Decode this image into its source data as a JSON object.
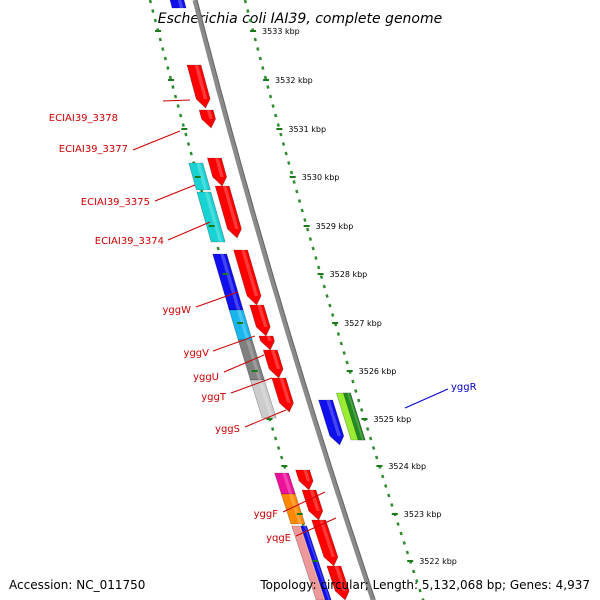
{
  "title": "Escherichia coli IAI39, complete genome",
  "footer": {
    "accession": "Accession: NC_011750",
    "stats": "Topology: circular; Length: 5,132,068 bp; Genes: 4,937"
  },
  "colors": {
    "backbone": "#8a8a8a",
    "ruler_dots": "#2e8b2e",
    "red": "#ff0000",
    "cyan": "#17d3d3",
    "blue": "#1010ee",
    "sky": "#19b5ee",
    "gray": "#808080",
    "lightgray": "#cccccc",
    "lime": "#99ee33",
    "green": "#228b22",
    "magenta": "#ee1199",
    "orange": "#ff8800",
    "pink": "#ee9999",
    "label_red": "#cc0000",
    "label_blue": "#0000cc"
  },
  "ticks": [
    "3533 kbp",
    "3532 kbp",
    "3531 kbp",
    "3530 kbp",
    "3529 kbp",
    "3528 kbp",
    "3527 kbp",
    "3526 kbp",
    "3525 kbp",
    "3524 kbp",
    "3523 kbp",
    "3522 kbp"
  ],
  "genes": [
    {
      "label": "ECIAI39_3378",
      "color": "label_red"
    },
    {
      "label": "ECIAI39_3377",
      "color": "label_red"
    },
    {
      "label": "ECIAI39_3375",
      "color": "label_red"
    },
    {
      "label": "ECIAI39_3374",
      "color": "label_red"
    },
    {
      "label": "yggW",
      "color": "label_red"
    },
    {
      "label": "yggV",
      "color": "label_red"
    },
    {
      "label": "yggU",
      "color": "label_red"
    },
    {
      "label": "yggT",
      "color": "label_red"
    },
    {
      "label": "yggS",
      "color": "label_red"
    },
    {
      "label": "yggF",
      "color": "label_red"
    },
    {
      "label": "yqgE",
      "color": "label_red"
    },
    {
      "label": "yggR",
      "color": "label_blue"
    }
  ]
}
